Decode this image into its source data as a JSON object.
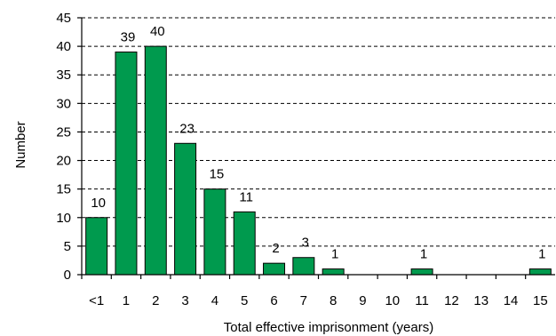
{
  "chart_data": {
    "type": "bar",
    "categories": [
      "<1",
      "1",
      "2",
      "3",
      "4",
      "5",
      "6",
      "7",
      "8",
      "9",
      "10",
      "11",
      "12",
      "13",
      "14",
      "15"
    ],
    "values": [
      10,
      39,
      40,
      23,
      15,
      11,
      2,
      3,
      1,
      0,
      0,
      1,
      0,
      0,
      0,
      1
    ],
    "data_labels": [
      "10",
      "39",
      "40",
      "23",
      "15",
      "11",
      "2",
      "3",
      "1",
      "",
      "",
      "1",
      "",
      "",
      "",
      "1"
    ],
    "title": "",
    "xlabel": "Total effective imprisonment (years)",
    "ylabel": "Number",
    "ylim": [
      0,
      45
    ],
    "yticks": [
      "0",
      "5",
      "10",
      "15",
      "20",
      "25",
      "30",
      "35",
      "40",
      "45"
    ],
    "grid": true,
    "legend": "none",
    "bar_color": "#009A4E"
  }
}
